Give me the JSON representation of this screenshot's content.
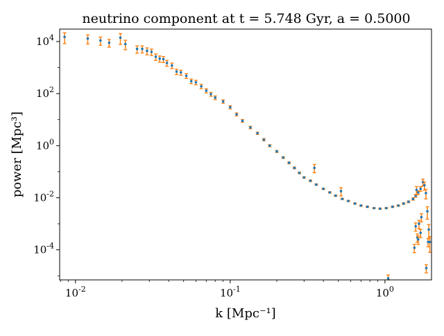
{
  "chart_data": {
    "type": "scatter",
    "title": "neutrino component at t = 5.748 Gyr, a = 0.5000",
    "xlabel": "k [Mpc⁻¹]",
    "ylabel": "power [Mpc³]",
    "xscale": "log",
    "yscale": "log",
    "xlim": [
      0.0079,
      2.0
    ],
    "ylim": [
      7e-06,
      30000
    ],
    "grid": false,
    "legend": "none",
    "x_ticks": [
      {
        "value": 0.01,
        "label": "10",
        "exp": "-2"
      },
      {
        "value": 0.1,
        "label": "10",
        "exp": "-1"
      },
      {
        "value": 1,
        "label": "10",
        "exp": "0"
      }
    ],
    "y_ticks": [
      {
        "value": 0.0001,
        "label": "10",
        "exp": "-4"
      },
      {
        "value": 0.01,
        "label": "10",
        "exp": "-2"
      },
      {
        "value": 1,
        "label": "10",
        "exp": "0"
      },
      {
        "value": 100,
        "label": "10",
        "exp": "2"
      },
      {
        "value": 10000,
        "label": "10",
        "exp": "4"
      }
    ],
    "colors": {
      "points": "#1f77b4",
      "errorbars": "#ff7f0e"
    },
    "series": [
      {
        "x": [
          0.0085,
          0.012,
          0.0145,
          0.0165,
          0.0195,
          0.021,
          0.025,
          0.027,
          0.029,
          0.031,
          0.033,
          0.035,
          0.037,
          0.039,
          0.042,
          0.045,
          0.048,
          0.052,
          0.056,
          0.06,
          0.065,
          0.07,
          0.075,
          0.08,
          0.09,
          0.1,
          0.11,
          0.12,
          0.135,
          0.15,
          0.165,
          0.18,
          0.2,
          0.22,
          0.24,
          0.26,
          0.28,
          0.3,
          0.33,
          0.36,
          0.4,
          0.44,
          0.48,
          0.53,
          0.58,
          0.64,
          0.7,
          0.77,
          0.85,
          0.93,
          1.02,
          1.12,
          1.22,
          1.32,
          1.42,
          1.52,
          1.58,
          1.64,
          1.7,
          1.76,
          1.8,
          1.84,
          1.88,
          1.92,
          1.95
        ],
        "y": [
          15000,
          13000,
          11000,
          9000,
          14000,
          8000,
          5200,
          5200,
          4400,
          4000,
          2600,
          2200,
          2100,
          1500,
          1200,
          700,
          650,
          480,
          300,
          270,
          190,
          130,
          95,
          70,
          50,
          30,
          16,
          9,
          5,
          3,
          1.7,
          1.0,
          0.6,
          0.35,
          0.22,
          0.14,
          0.09,
          0.06,
          0.045,
          0.032,
          0.022,
          0.016,
          0.012,
          0.009,
          0.0075,
          0.006,
          0.005,
          0.0045,
          0.004,
          0.0038,
          0.004,
          0.0045,
          0.005,
          0.006,
          0.007,
          0.009,
          0.012,
          0.016,
          0.022,
          0.04,
          0.03,
          0.015,
          0.003,
          0.0006,
          0.0002
        ],
        "yerr_frac": [
          0.45,
          0.38,
          0.35,
          0.33,
          0.45,
          0.4,
          0.32,
          0.3,
          0.3,
          0.28,
          0.28,
          0.27,
          0.26,
          0.25,
          0.24,
          0.23,
          0.22,
          0.21,
          0.2,
          0.2,
          0.19,
          0.18,
          0.17,
          0.16,
          0.15,
          0.14,
          0.13,
          0.12,
          0.11,
          0.1,
          0.1,
          0.09,
          0.09,
          0.08,
          0.08,
          0.08,
          0.07,
          0.07,
          0.07,
          0.06,
          0.06,
          0.06,
          0.05,
          0.05,
          0.05,
          0.05,
          0.05,
          0.05,
          0.05,
          0.05,
          0.05,
          0.06,
          0.06,
          0.07,
          0.08,
          0.1,
          0.12,
          0.15,
          0.2,
          0.3,
          0.35,
          0.4,
          0.5,
          0.55,
          0.6
        ]
      }
    ],
    "outliers": {
      "x": [
        1.05,
        1.55,
        1.58,
        1.62,
        1.64,
        1.85,
        1.9,
        1.7,
        1.72,
        0.52,
        0.35,
        1.6,
        1.66
      ],
      "y": [
        8e-06,
        0.00012,
        0.0008,
        0.0003,
        0.00025,
        2e-05,
        0.0002,
        0.00045,
        0.0018,
        0.018,
        0.14,
        0.02,
        0.001
      ]
    }
  }
}
